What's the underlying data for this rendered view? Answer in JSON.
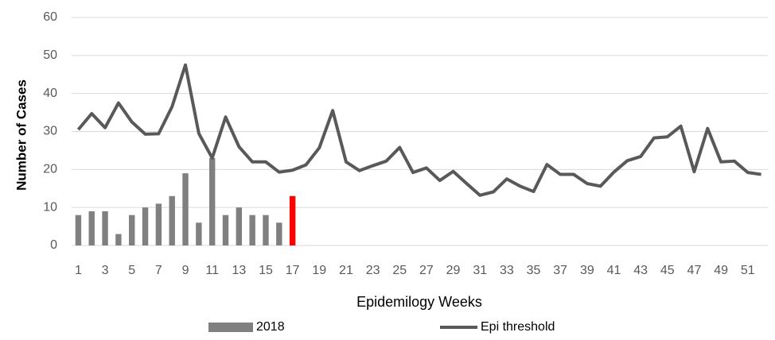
{
  "chart_data": {
    "type": "bar_line",
    "x_label": "Epidemilogy Weeks",
    "y_label": "Number of Cases",
    "categories": [
      1,
      null,
      3,
      null,
      5,
      null,
      7,
      null,
      9,
      null,
      11,
      null,
      13,
      null,
      15,
      null,
      17,
      null,
      19,
      null,
      21,
      null,
      23,
      null,
      25,
      null,
      27,
      null,
      29,
      null,
      31,
      null,
      33,
      null,
      35,
      null,
      37,
      null,
      39,
      null,
      41,
      null,
      43,
      null,
      45,
      null,
      47,
      null,
      49,
      null,
      51,
      null
    ],
    "series": [
      {
        "name": "2018",
        "kind": "bar",
        "color": "#808080",
        "values": [
          8,
          9,
          9,
          3,
          8,
          10,
          11,
          13,
          19,
          6,
          23,
          8,
          10,
          8,
          8,
          6,
          13,
          null,
          null,
          null,
          null,
          null,
          null,
          null,
          null,
          null,
          null,
          null,
          null,
          null,
          null,
          null,
          null,
          null,
          null,
          null,
          null,
          null,
          null,
          null,
          null,
          null,
          null,
          null,
          null,
          null,
          null,
          null,
          null,
          null,
          null,
          null
        ],
        "colors": [
          "#808080",
          "#808080",
          "#808080",
          "#808080",
          "#808080",
          "#808080",
          "#808080",
          "#808080",
          "#808080",
          "#808080",
          "#808080",
          "#808080",
          "#808080",
          "#808080",
          "#808080",
          "#808080",
          "#ff0000",
          null,
          null,
          null,
          null,
          null,
          null,
          null,
          null,
          null,
          null,
          null,
          null,
          null,
          null,
          null,
          null,
          null,
          null,
          null,
          null,
          null,
          null,
          null,
          null,
          null,
          null,
          null,
          null,
          null,
          null,
          null,
          null,
          null,
          null,
          null
        ]
      },
      {
        "name": "Epi threshold",
        "kind": "line",
        "color": "#595959",
        "values": [
          30.5,
          34.7,
          31,
          37.5,
          32.5,
          29.3,
          29.4,
          36.5,
          47.5,
          29.5,
          23,
          33.8,
          26,
          22,
          22,
          19.3,
          19.8,
          21.2,
          25.7,
          35.5,
          22,
          19.7,
          21,
          22.2,
          25.8,
          19.2,
          20.4,
          17.1,
          19.5,
          16.3,
          13.2,
          14.1,
          17.5,
          15.6,
          14.2,
          21.3,
          18.7,
          18.7,
          16.3,
          15.6,
          19.3,
          22.3,
          23.4,
          28.3,
          28.6,
          31.4,
          19.4,
          30.8,
          22,
          22.2,
          19.2,
          18.7
        ]
      }
    ],
    "ylim": [
      0,
      60
    ],
    "yticks": [
      0,
      10,
      20,
      30,
      40,
      50,
      60
    ],
    "grid": true,
    "legend": "bottom"
  }
}
